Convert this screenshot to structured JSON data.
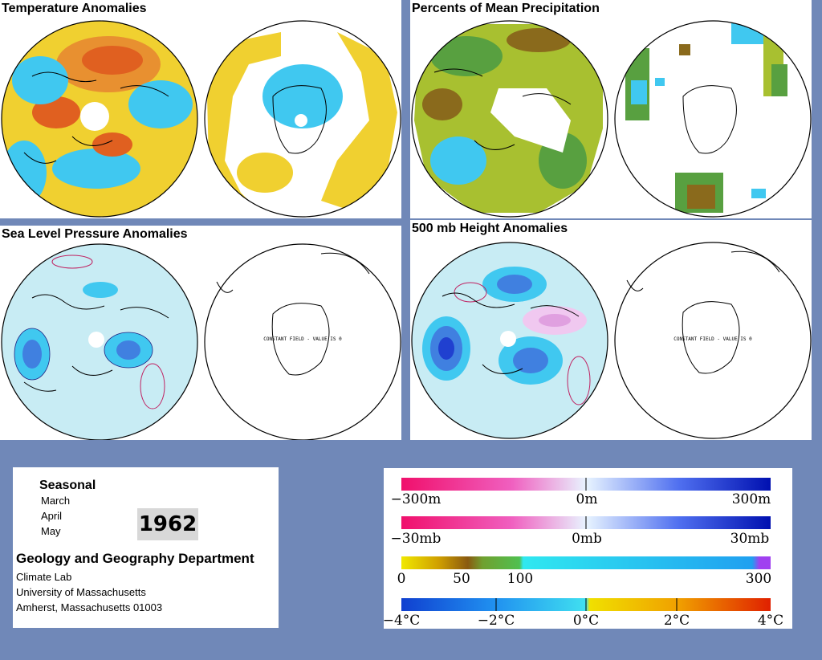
{
  "panels": {
    "temperature": {
      "title": "Temperature Anomalies"
    },
    "precipitation": {
      "title": "Percents of Mean Precipitation"
    },
    "slp": {
      "title": "Sea Level Pressure Anomalies",
      "constant_note": "CONSTANT FIELD - VALUE IS 0"
    },
    "h500": {
      "title": "500 mb Height Anomalies",
      "constant_note": "CONSTANT FIELD - VALUE IS 0"
    }
  },
  "info": {
    "season_label": "Seasonal",
    "months": [
      "March",
      "April",
      "May"
    ],
    "year": "1962",
    "department": "Geology and Geography Department",
    "address": [
      "Climate Lab",
      "University of Massachusetts",
      "Amherst, Massachusetts 01003"
    ]
  },
  "legends": {
    "height": {
      "labels": [
        "−300m",
        "0m",
        "300m"
      ]
    },
    "pressure": {
      "labels": [
        "−30mb",
        "0mb",
        "30mb"
      ]
    },
    "precip": {
      "labels": [
        "0",
        "50",
        "100",
        "300"
      ]
    },
    "temp": {
      "labels": [
        "−4°C",
        "−2°C",
        "0°C",
        "2°C",
        "4°C"
      ]
    }
  },
  "colors": {
    "background": "#7088b8",
    "warm": "#e06020",
    "yellow": "#f0d020",
    "cyan": "#40c8f0",
    "blue": "#2040d0",
    "magenta": "#f0208c",
    "green": "#58a040",
    "brown": "#8a6a1c"
  }
}
